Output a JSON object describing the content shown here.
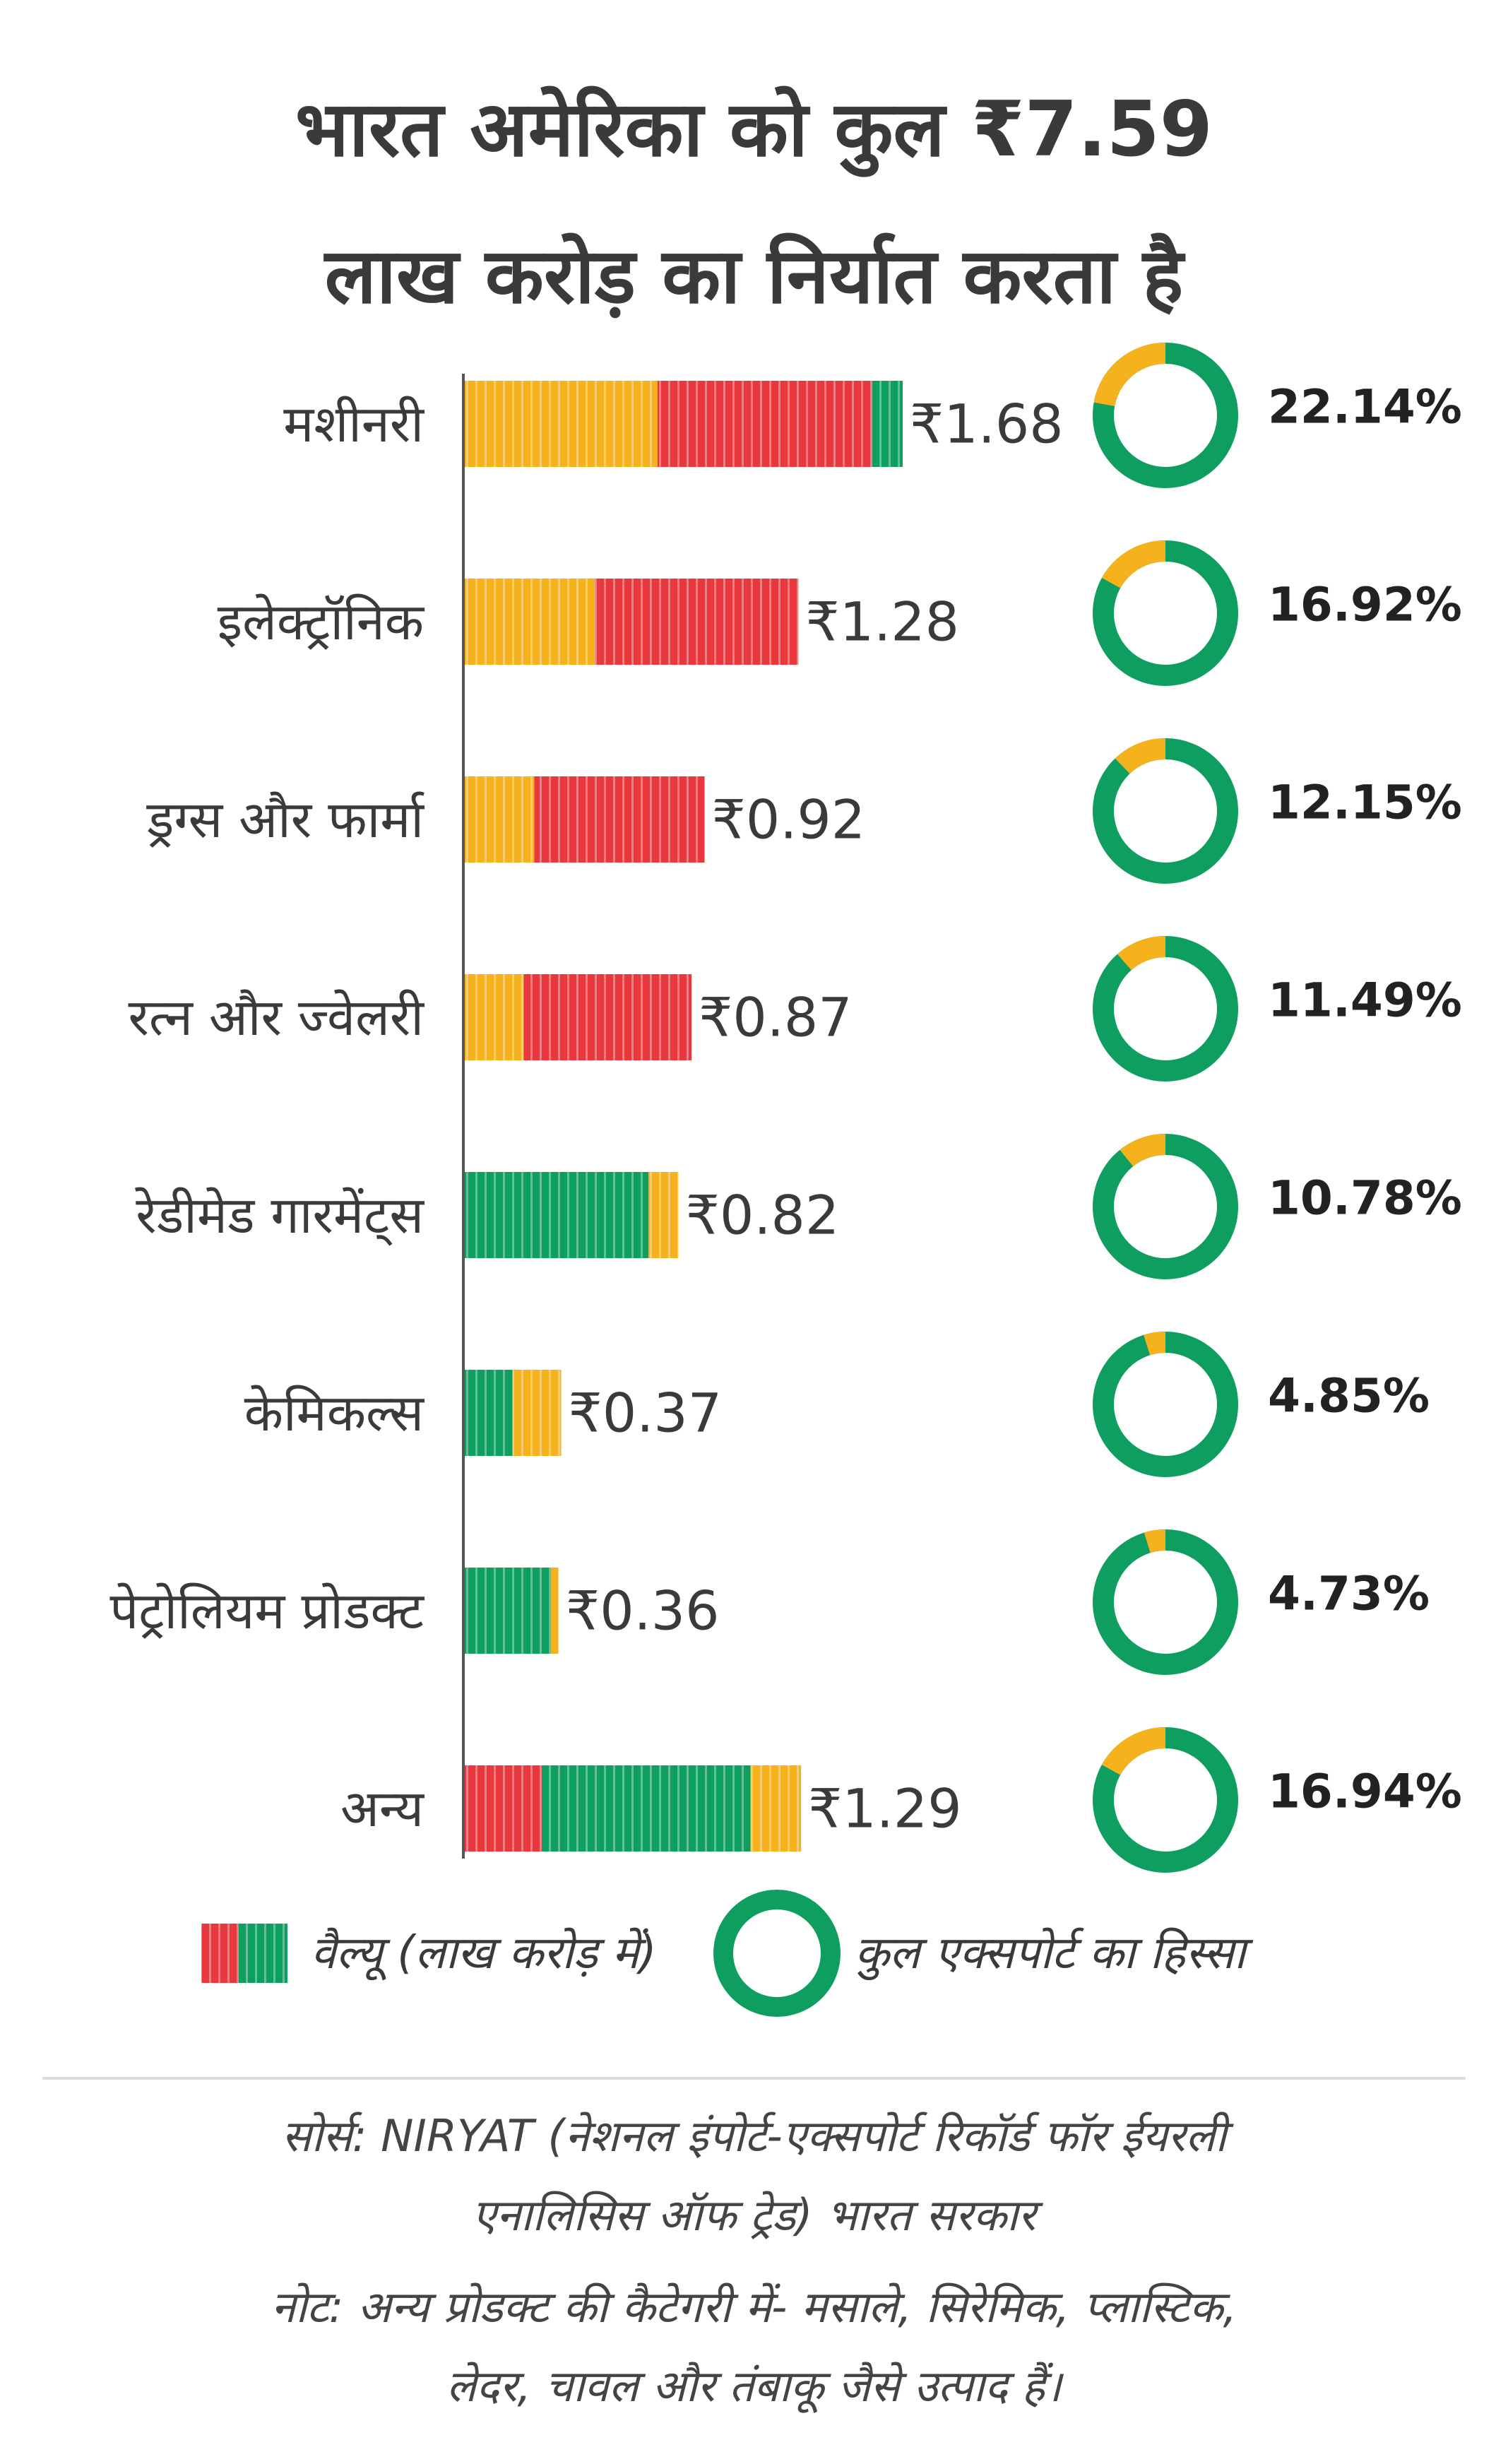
{
  "title": {
    "line1": "भारत अमेरिका को कुल ₹7.59",
    "line2": "लाख करोड़ का निर्यात करता है"
  },
  "colors": {
    "yellow": "#F6B21D",
    "red": "#E8383D",
    "green": "#0E9E60",
    "axis": "#555555"
  },
  "chart_data": {
    "type": "bar",
    "orientation": "horizontal",
    "title": "भारत अमेरिका को कुल ₹7.59 लाख करोड़ का निर्यात करता है",
    "xlabel": "",
    "ylabel": "",
    "categories": [
      "मशीनरी",
      "इलेक्ट्रॉनिक",
      "ड्रग्स और फार्मा",
      "रत्न और ज्वेलरी",
      "रेडीमेड गारमेंट्स",
      "केमिकल्स",
      "पेट्रोलियम प्रोडक्ट",
      "अन्य"
    ],
    "values": [
      1.68,
      1.28,
      0.92,
      0.87,
      0.82,
      0.37,
      0.36,
      1.29
    ],
    "value_labels": [
      "₹1.68",
      "₹1.28",
      "₹0.92",
      "₹0.87",
      "₹0.82",
      "₹0.37",
      "₹0.36",
      "₹1.29"
    ],
    "bar_segments": [
      [
        "yellow",
        "red",
        "green"
      ],
      [
        "yellow",
        "red"
      ],
      [
        "yellow",
        "red"
      ],
      [
        "yellow",
        "red"
      ],
      [
        "green",
        "yellow"
      ],
      [
        "green",
        "yellow"
      ],
      [
        "green",
        "yellow"
      ],
      [
        "red",
        "green",
        "yellow"
      ]
    ],
    "bar_segment_shares": [
      [
        0.44,
        0.49,
        0.07
      ],
      [
        0.39,
        0.61
      ],
      [
        0.29,
        0.71
      ],
      [
        0.26,
        0.74
      ],
      [
        0.86,
        0.14
      ],
      [
        0.5,
        0.5
      ],
      [
        0.92,
        0.08
      ],
      [
        0.23,
        0.62,
        0.15
      ]
    ],
    "share_percent": [
      22.14,
      16.92,
      12.15,
      11.49,
      10.78,
      4.85,
      4.73,
      16.94
    ],
    "share_labels": [
      "22.14%",
      "16.92%",
      "12.15%",
      "11.49%",
      "10.78%",
      "4.85%",
      "4.73%",
      "16.94%"
    ],
    "xlim": [
      0,
      1.68
    ],
    "grid": false,
    "legend": [
      {
        "marker": "bar",
        "label": "वैल्यू (लाख करोड़ में)"
      },
      {
        "marker": "ring",
        "label": "कुल एक्सपोर्ट का हिस्सा"
      }
    ],
    "legend_position": "bottom"
  },
  "footer": {
    "source_line1": "सोर्स: NIRYAT (नेशनल इंपोर्ट-एक्सपोर्ट रिकॉर्ड फॉर ईयरली",
    "source_line2": "एनालिसिस ऑफ ट्रेड) भारत सरकार",
    "note_line1": "नोट: अन्य प्रोडक्ट की कैटेगरी में- मसाले, सिरेमिक, प्लास्टिक,",
    "note_line2": "लेदर, चावल और तंबाकू जैसे उत्पाद हैं।"
  }
}
